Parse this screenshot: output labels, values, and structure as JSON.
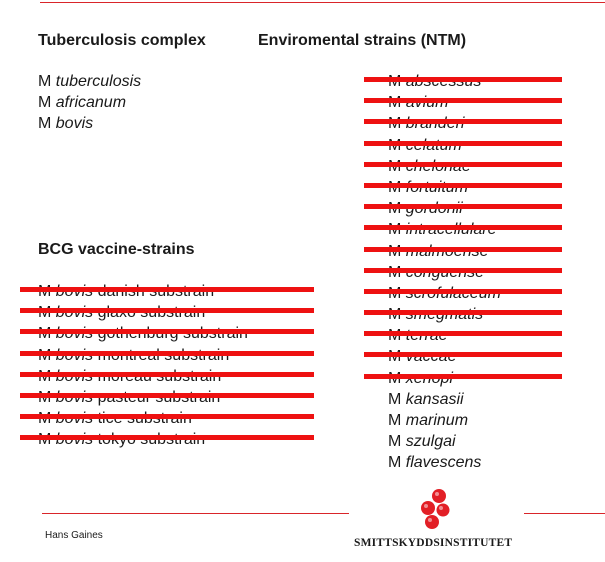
{
  "headings": {
    "tuberculosis_complex": "Tuberculosis complex",
    "environmental_strains": "Enviromental strains (NTM)",
    "bcg": "BCG vaccine-strains"
  },
  "tuberculosis_complex": [
    {
      "prefix": "M",
      "name": "tuberculosis"
    },
    {
      "prefix": "M",
      "name": "africanum"
    },
    {
      "prefix": "M",
      "name": "bovis"
    }
  ],
  "bcg_strains": [
    {
      "prefix": "M",
      "name": "bovis",
      "rest": "danish substrain",
      "struck": true
    },
    {
      "prefix": "M",
      "name": "bovis",
      "rest": "glaxo substrain",
      "struck": true
    },
    {
      "prefix": "M",
      "name": "bovis",
      "rest": "gothenburg substrain",
      "struck": true
    },
    {
      "prefix": "M",
      "name": "bovis",
      "rest": "montreal substrain",
      "struck": true
    },
    {
      "prefix": "M",
      "name": "bovis",
      "rest": "moreau substrain",
      "struck": true
    },
    {
      "prefix": "M",
      "name": "bovis",
      "rest": "pasteur substrain",
      "struck": true
    },
    {
      "prefix": "M",
      "name": "bovis",
      "rest": "tice substrain",
      "struck": true
    },
    {
      "prefix": "M",
      "name": "bovis",
      "rest": "tokyo substrain",
      "struck": true
    }
  ],
  "ntm_strains": [
    {
      "prefix": "M",
      "name": "abscessus",
      "struck": true
    },
    {
      "prefix": "M",
      "name": "avium",
      "struck": true
    },
    {
      "prefix": "M",
      "name": "branderi",
      "struck": true
    },
    {
      "prefix": "M",
      "name": "celatum",
      "struck": true
    },
    {
      "prefix": "M",
      "name": "chelonae",
      "struck": true
    },
    {
      "prefix": "M",
      "name": "fortuitum",
      "struck": true
    },
    {
      "prefix": "M",
      "name": "gordonii",
      "struck": true
    },
    {
      "prefix": "M",
      "name": "intracellulare",
      "struck": true
    },
    {
      "prefix": "M",
      "name": "malmoense",
      "struck": true
    },
    {
      "prefix": "M",
      "name": "conguense",
      "struck": true
    },
    {
      "prefix": "M",
      "name": "scrofulaceum",
      "struck": true
    },
    {
      "prefix": "M",
      "name": "smegmatis",
      "struck": true
    },
    {
      "prefix": "M",
      "name": "terrae",
      "struck": true
    },
    {
      "prefix": "M",
      "name": "vaccae",
      "struck": true
    },
    {
      "prefix": "M",
      "name": "xenopi",
      "struck": true
    },
    {
      "prefix": "M",
      "name": "kansasii",
      "struck": false
    },
    {
      "prefix": "M",
      "name": "marinum",
      "struck": false
    },
    {
      "prefix": "M",
      "name": "szulgai",
      "struck": false
    },
    {
      "prefix": "M",
      "name": "flavescens",
      "struck": false
    }
  ],
  "footer": {
    "author": "Hans Gaines",
    "logo_text": "SMITTSKYDDSINSTITUTET"
  },
  "colors": {
    "accent_rule": "#d9252a",
    "strike": "#ee1111",
    "logo_red": "#e21f26"
  }
}
